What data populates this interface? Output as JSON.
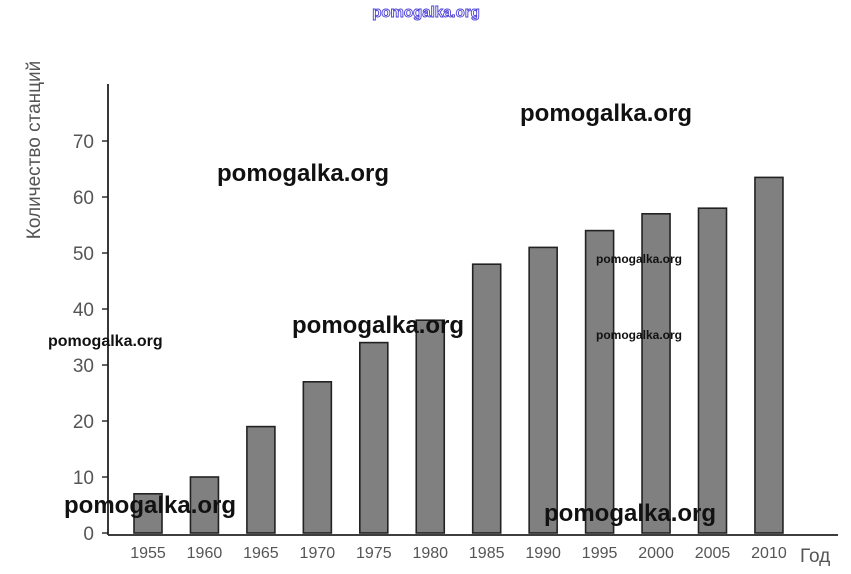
{
  "watermark": {
    "text": "pomogalka.org"
  },
  "chart_data": {
    "type": "bar",
    "title": "",
    "xlabel": "Год",
    "ylabel": "Количество станций",
    "categories": [
      "1955",
      "1960",
      "1965",
      "1970",
      "1975",
      "1980",
      "1985",
      "1990",
      "1995",
      "2000",
      "2005",
      "2010"
    ],
    "values": [
      7,
      10,
      19,
      27,
      34,
      38,
      48,
      51,
      54,
      57,
      58,
      63.5
    ],
    "ylim": [
      0,
      80
    ],
    "yticks": [
      0,
      10,
      20,
      30,
      40,
      50,
      60,
      70
    ],
    "grid": false,
    "bar_color": "#808080",
    "bar_edge_color": "#222222"
  }
}
